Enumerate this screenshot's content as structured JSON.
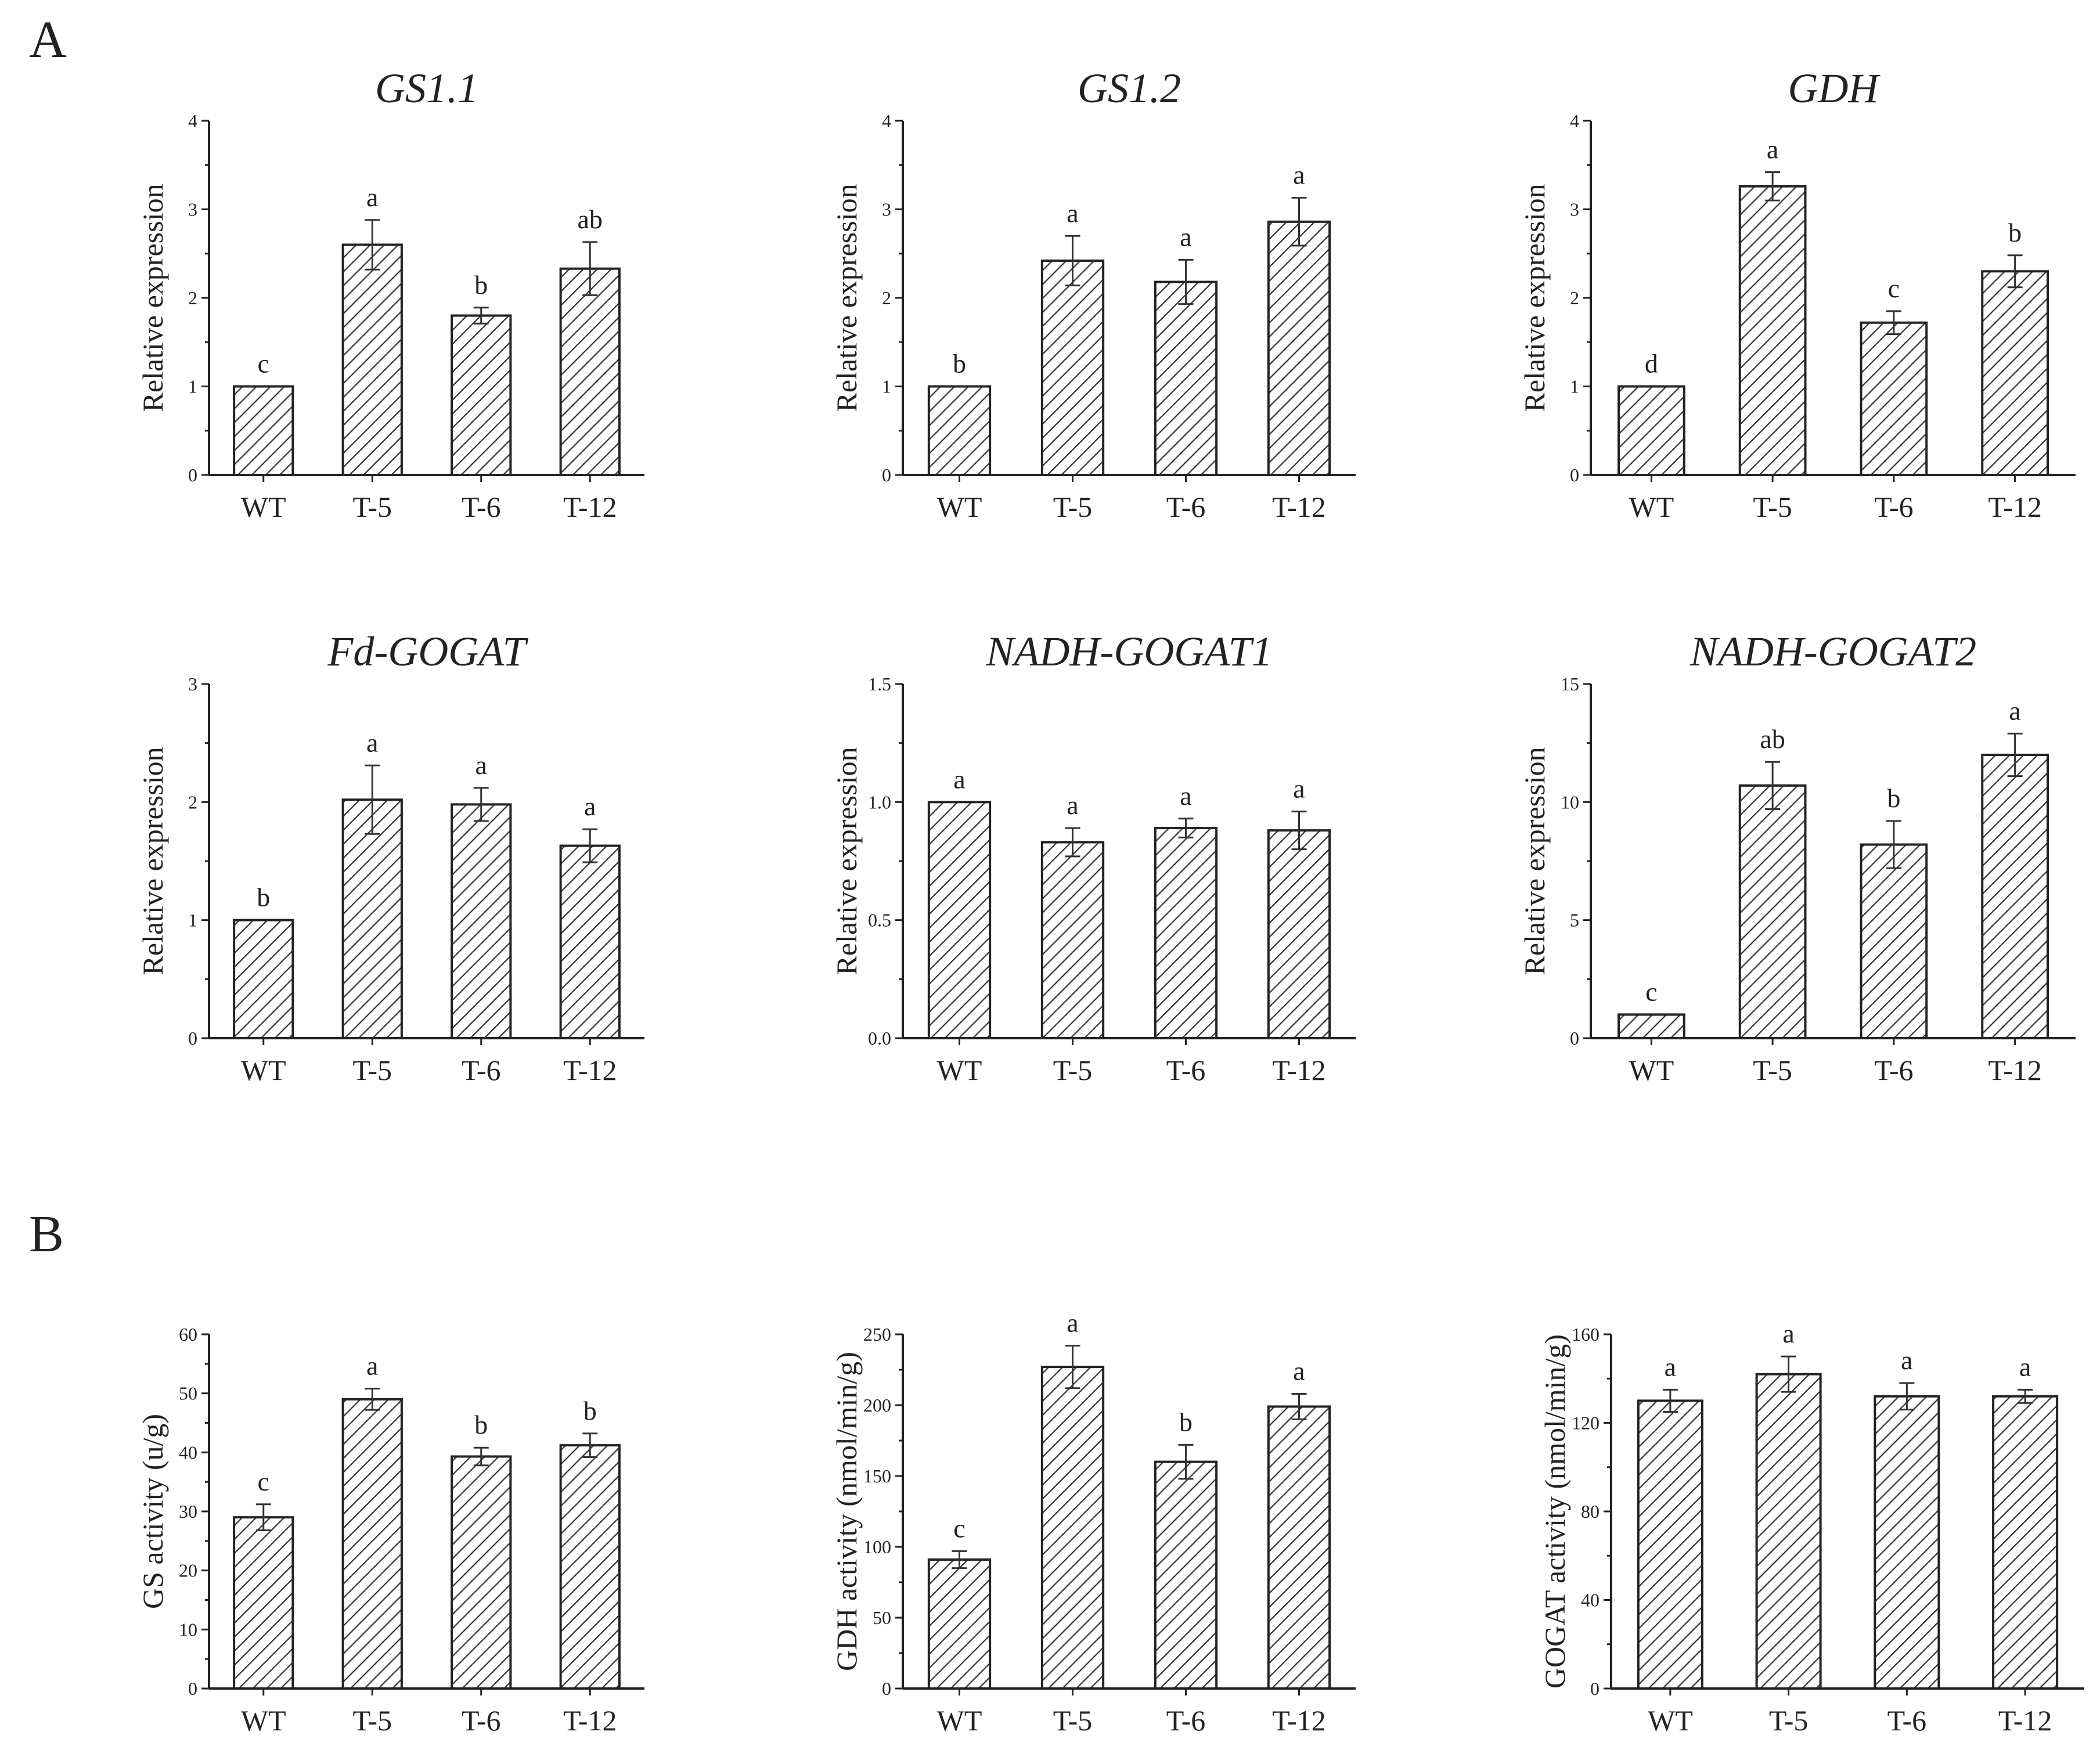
{
  "panels": {
    "A": "A",
    "B": "B"
  },
  "colors": {
    "ink": "#222222",
    "background": "#ffffff"
  },
  "chart_data": [
    {
      "type": "bar",
      "panel": "A",
      "title": "GS1.1",
      "xlabel": "",
      "ylabel": "Relative expression",
      "categories": [
        "WT",
        "T-5",
        "T-6",
        "T-12"
      ],
      "values": [
        1.0,
        2.6,
        1.8,
        2.33
      ],
      "errors": [
        0,
        0.28,
        0.09,
        0.3
      ],
      "significance": [
        "c",
        "a",
        "b",
        "ab"
      ],
      "ylim": [
        0,
        4
      ],
      "yticks": [
        0,
        1,
        2,
        3,
        4
      ],
      "ytick_labels": [
        "0",
        "1",
        "2",
        "3",
        "4"
      ],
      "minor_yticks": true
    },
    {
      "type": "bar",
      "panel": "A",
      "title": "GS1.2",
      "xlabel": "",
      "ylabel": "Relative expression",
      "categories": [
        "WT",
        "T-5",
        "T-6",
        "T-12"
      ],
      "values": [
        1.0,
        2.42,
        2.18,
        2.86
      ],
      "errors": [
        0,
        0.28,
        0.25,
        0.27
      ],
      "significance": [
        "b",
        "a",
        "a",
        "a"
      ],
      "ylim": [
        0,
        4
      ],
      "yticks": [
        0,
        1,
        2,
        3,
        4
      ],
      "ytick_labels": [
        "0",
        "1",
        "2",
        "3",
        "4"
      ],
      "minor_yticks": true
    },
    {
      "type": "bar",
      "panel": "A",
      "title": "GDH",
      "xlabel": "",
      "ylabel": "Relative expression",
      "categories": [
        "WT",
        "T-5",
        "T-6",
        "T-12"
      ],
      "values": [
        1.0,
        3.26,
        1.72,
        2.3
      ],
      "errors": [
        0,
        0.16,
        0.13,
        0.18
      ],
      "significance": [
        "d",
        "a",
        "c",
        "b"
      ],
      "ylim": [
        0,
        4
      ],
      "yticks": [
        0,
        1,
        2,
        3,
        4
      ],
      "ytick_labels": [
        "0",
        "1",
        "2",
        "3",
        "4"
      ],
      "minor_yticks": true
    },
    {
      "type": "bar",
      "panel": "A",
      "title": "Fd-GOGAT",
      "xlabel": "",
      "ylabel": "Relative expression",
      "categories": [
        "WT",
        "T-5",
        "T-6",
        "T-12"
      ],
      "values": [
        1.0,
        2.02,
        1.98,
        1.63
      ],
      "errors": [
        0,
        0.29,
        0.14,
        0.14
      ],
      "significance": [
        "b",
        "a",
        "a",
        "a"
      ],
      "ylim": [
        0,
        3
      ],
      "yticks": [
        0,
        1,
        2,
        3
      ],
      "ytick_labels": [
        "0",
        "1",
        "2",
        "3"
      ],
      "minor_yticks": true
    },
    {
      "type": "bar",
      "panel": "A",
      "title": "NADH-GOGAT1",
      "xlabel": "",
      "ylabel": "Relative expression",
      "categories": [
        "WT",
        "T-5",
        "T-6",
        "T-12"
      ],
      "values": [
        1.0,
        0.83,
        0.89,
        0.88
      ],
      "errors": [
        0,
        0.06,
        0.04,
        0.08
      ],
      "significance": [
        "a",
        "a",
        "a",
        "a"
      ],
      "ylim": [
        0,
        1.5
      ],
      "yticks": [
        0,
        0.5,
        1.0,
        1.5
      ],
      "ytick_labels": [
        "0.0",
        "0.5",
        "1.0",
        "1.5"
      ],
      "minor_yticks": true
    },
    {
      "type": "bar",
      "panel": "A",
      "title": "NADH-GOGAT2",
      "xlabel": "",
      "ylabel": "Relative expression",
      "categories": [
        "WT",
        "T-5",
        "T-6",
        "T-12"
      ],
      "values": [
        1.0,
        10.7,
        8.2,
        12.0
      ],
      "errors": [
        0,
        1.0,
        1.0,
        0.9
      ],
      "significance": [
        "c",
        "ab",
        "b",
        "a"
      ],
      "ylim": [
        0,
        15
      ],
      "yticks": [
        0,
        5,
        10,
        15
      ],
      "ytick_labels": [
        "0",
        "5",
        "10",
        "15"
      ],
      "minor_yticks": true
    },
    {
      "type": "bar",
      "panel": "B",
      "title": "",
      "xlabel": "",
      "ylabel": "GS activity (u/g)",
      "categories": [
        "WT",
        "T-5",
        "T-6",
        "T-12"
      ],
      "values": [
        29,
        49,
        39.3,
        41.2
      ],
      "errors": [
        2.2,
        1.8,
        1.5,
        2.0
      ],
      "significance": [
        "c",
        "a",
        "b",
        "b"
      ],
      "ylim": [
        0,
        60
      ],
      "yticks": [
        0,
        10,
        20,
        30,
        40,
        50,
        60
      ],
      "ytick_labels": [
        "0",
        "10",
        "20",
        "30",
        "40",
        "50",
        "60"
      ],
      "minor_yticks": true
    },
    {
      "type": "bar",
      "panel": "B",
      "title": "",
      "xlabel": "",
      "ylabel": "GDH activity (nmol/min/g)",
      "categories": [
        "WT",
        "T-5",
        "T-6",
        "T-12"
      ],
      "values": [
        91,
        227,
        160,
        199
      ],
      "errors": [
        6,
        15,
        12,
        9
      ],
      "significance": [
        "c",
        "a",
        "b",
        "a"
      ],
      "ylim": [
        0,
        250
      ],
      "yticks": [
        0,
        50,
        100,
        150,
        200,
        250
      ],
      "ytick_labels": [
        "0",
        "50",
        "100",
        "150",
        "200",
        "250"
      ],
      "minor_yticks": true
    },
    {
      "type": "bar",
      "panel": "B",
      "title": "",
      "xlabel": "",
      "ylabel": "GOGAT activity (nmol/min/g)",
      "categories": [
        "WT",
        "T-5",
        "T-6",
        "T-12"
      ],
      "values": [
        130,
        142,
        132,
        132
      ],
      "errors": [
        5,
        8,
        6,
        3
      ],
      "significance": [
        "a",
        "a",
        "a",
        "a"
      ],
      "ylim": [
        0,
        160
      ],
      "yticks": [
        0,
        40,
        80,
        120,
        160
      ],
      "ytick_labels": [
        "0",
        "40",
        "80",
        "120",
        "160"
      ],
      "minor_yticks": true
    }
  ]
}
